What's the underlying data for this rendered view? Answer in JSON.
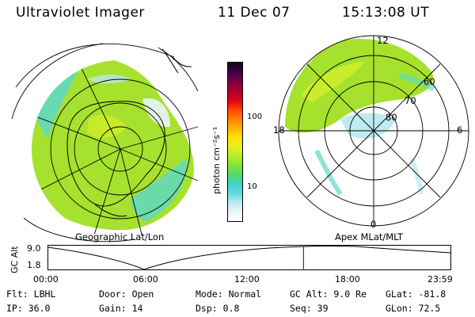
{
  "header": {
    "instrument": "Ultraviolet Imager",
    "date": "11 Dec 07",
    "time": "15:13:08 UT"
  },
  "colorbar": {
    "title": "photon cm⁻²s⁻¹",
    "ticks": [
      "100",
      "10"
    ],
    "colors": [
      "#ffffff",
      "#e8f6f8",
      "#b8e8ef",
      "#5fd8dc",
      "#40d2c4",
      "#52da6a",
      "#7fe43a",
      "#b8ef2a",
      "#e6f020",
      "#ffe000",
      "#ffb000",
      "#ff7a00",
      "#ff3c00",
      "#e0001a",
      "#b00030",
      "#7a0040",
      "#400048",
      "#14081a"
    ]
  },
  "left_panel": {
    "label": "Geographic Lat/Lon"
  },
  "right_panel": {
    "label": "Apex MLat/MLT",
    "mlt_labels": {
      "top": "12",
      "left": "18",
      "right": "6",
      "bottom": "0"
    },
    "lat_labels": [
      "60",
      "70",
      "80"
    ]
  },
  "timeline": {
    "ylabel": "GC Alt",
    "y_ticks": [
      "9.0",
      "1.8"
    ],
    "x_ticks": [
      "00:00",
      "06:00",
      "12:00",
      "18:00",
      "23:59"
    ],
    "current_marker_hours": 15.22,
    "marker_color": "#d40000"
  },
  "info": {
    "row1": [
      {
        "key": "Flt:",
        "val": "LBHL"
      },
      {
        "key": "Door:",
        "val": "Open"
      },
      {
        "key": "Mode:",
        "val": "Normal"
      },
      {
        "key": "GC Alt:",
        "val": "9.0 Re"
      },
      {
        "key": "GLat:",
        "val": "-81.8"
      }
    ],
    "row2": [
      {
        "key": "IP:",
        "val": "36.0"
      },
      {
        "key": "Gain:",
        "val": "14"
      },
      {
        "key": "Dsp:",
        "val": "0.8"
      },
      {
        "key": "Seq:",
        "val": "39"
      },
      {
        "key": "GLon:",
        "val": "72.5"
      }
    ]
  }
}
